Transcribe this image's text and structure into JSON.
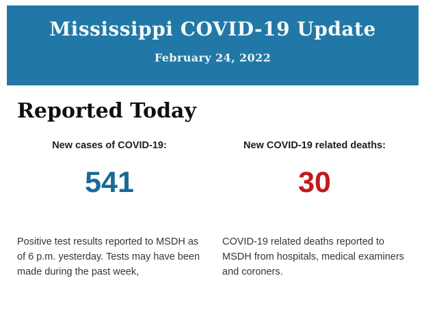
{
  "header": {
    "title": "Mississippi COVID-19 Update",
    "date": "February 24, 2022",
    "background_color": "#2178a7",
    "text_color": "#f2f8fa"
  },
  "section": {
    "heading": "Reported Today"
  },
  "stats": [
    {
      "label": "New cases of COVID-19:",
      "value": "541",
      "value_color": "#176b94",
      "description": "Positive test results reported to MSDH as of 6 p.m. yesterday. Tests may have been made during the past week,"
    },
    {
      "label": "New COVID-19 related deaths:",
      "value": "30",
      "value_color": "#c3191c",
      "description": "COVID-19 related deaths reported to MSDH from hospitals, medical examiners and coroners."
    }
  ]
}
